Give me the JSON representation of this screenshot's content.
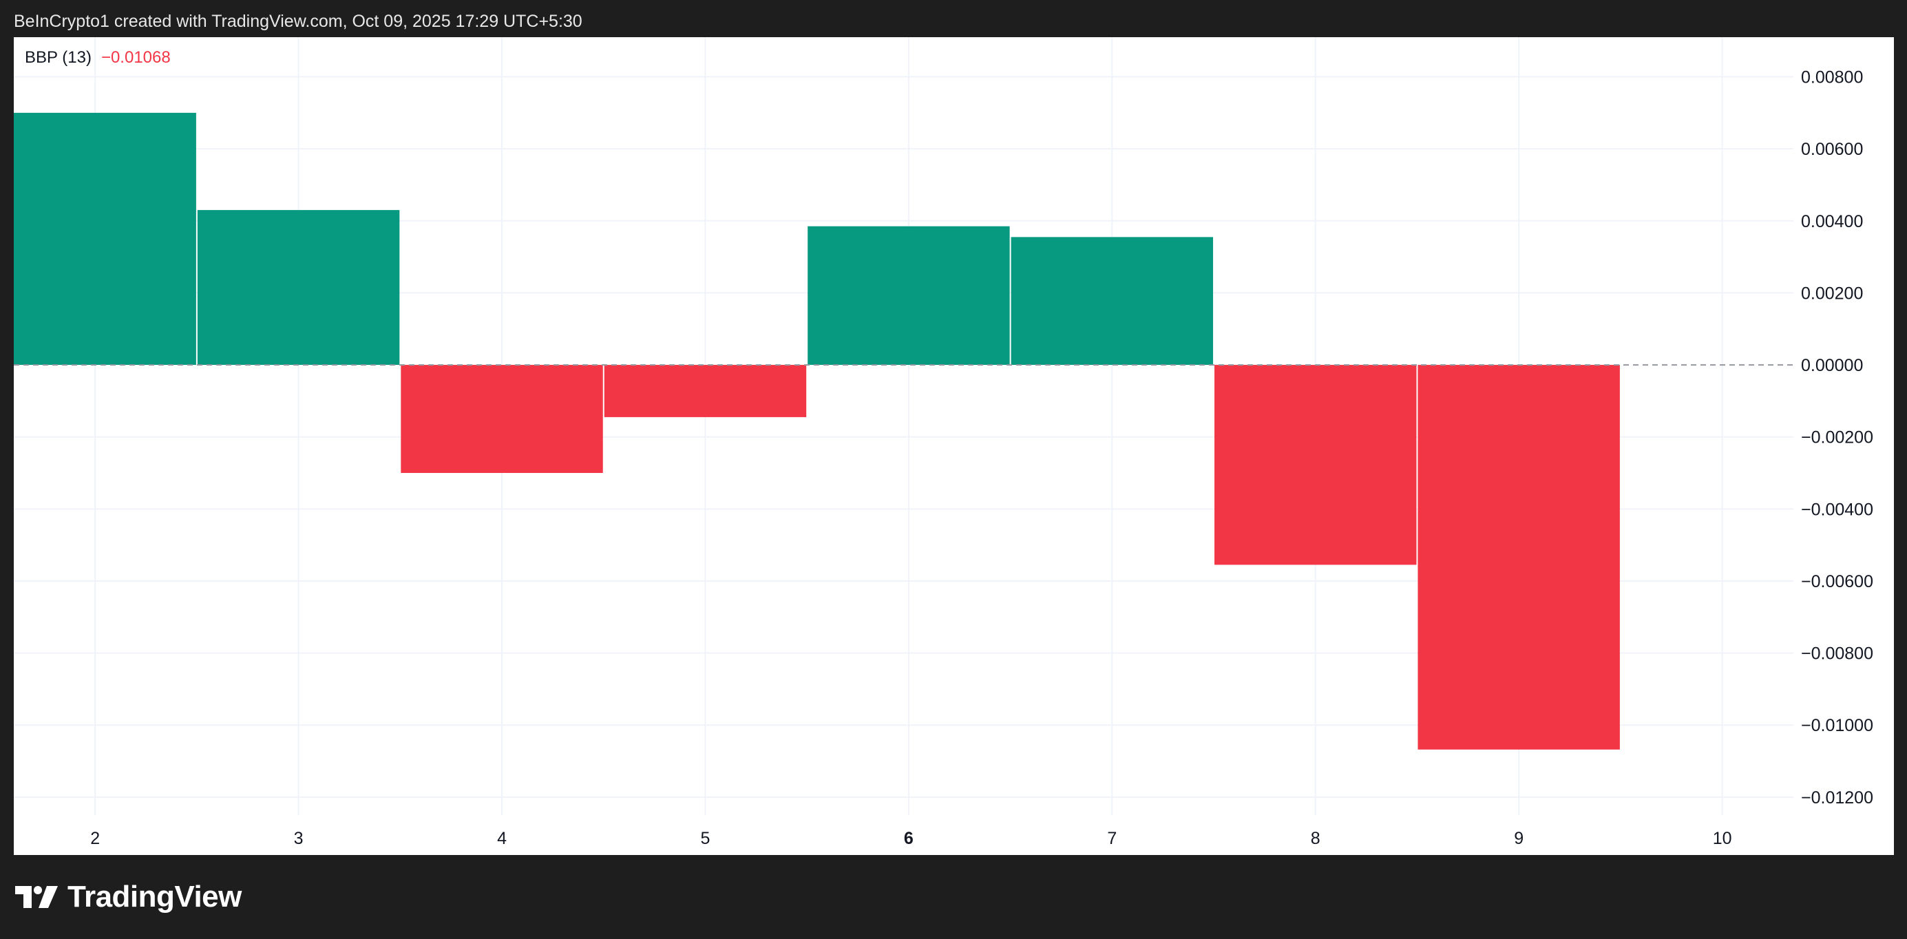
{
  "header": {
    "caption": "BeInCrypto1 created with TradingView.com, Oct 09, 2025 17:29 UTC+5:30"
  },
  "legend": {
    "indicator": "BBP (13)",
    "value": "−0.01068"
  },
  "footer": {
    "brand": "TradingView",
    "icon": "tradingview-logo-icon"
  },
  "colors": {
    "positive": "#089981",
    "negative": "#f23645",
    "background": "#1e1e1e",
    "panel": "#ffffff"
  },
  "chart_data": {
    "type": "bar",
    "title": "",
    "xlabel": "",
    "ylabel": "",
    "x_ticks": [
      "2",
      "3",
      "4",
      "5",
      "6",
      "7",
      "8",
      "9",
      "10"
    ],
    "x_tick_bold": "6",
    "y_ticks": [
      "0.00800",
      "0.00600",
      "0.00400",
      "0.00200",
      "0.00000",
      "−0.00200",
      "−0.00400",
      "−0.00600",
      "−0.00800",
      "−0.01000",
      "−0.01200"
    ],
    "ylim": [
      -0.0125,
      0.0091
    ],
    "xlim": [
      1.6,
      10.35
    ],
    "grid": true,
    "zero_line": "dashed",
    "series": [
      {
        "x": [
          2,
          3,
          4,
          5,
          6,
          7,
          8,
          9
        ],
        "values": [
          0.007,
          0.0043,
          -0.003,
          -0.00145,
          0.00385,
          0.00355,
          -0.00555,
          -0.01068
        ]
      }
    ]
  }
}
